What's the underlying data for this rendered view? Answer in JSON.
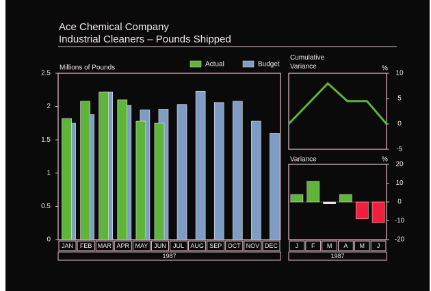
{
  "chart_data": [
    {
      "type": "bar",
      "title": "Ace Chemical Company",
      "subtitle": "Industrial Cleaners – Pounds Shipped",
      "y_label": "Millions of Pounds",
      "x_label": "1987",
      "categories": [
        "JAN",
        "FEB",
        "MAR",
        "APR",
        "MAY",
        "JUN",
        "JUL",
        "AUG",
        "SEP",
        "OCT",
        "NOV",
        "DEC"
      ],
      "series": [
        {
          "name": "Actual",
          "color": "#5fb53a",
          "values": [
            1.82,
            2.08,
            2.22,
            2.1,
            1.78,
            1.75,
            null,
            null,
            null,
            null,
            null,
            null
          ]
        },
        {
          "name": "Budget",
          "color": "#7f9cc4",
          "values": [
            1.75,
            1.88,
            2.22,
            2.02,
            1.95,
            1.96,
            2.03,
            2.23,
            2.06,
            2.08,
            1.78,
            1.6
          ]
        }
      ],
      "ylim": [
        0,
        2.5
      ],
      "yticks": [
        0,
        0.5,
        1,
        1.5,
        2,
        2.5
      ]
    },
    {
      "type": "line",
      "title": "Cumulative Variance",
      "unit": "%",
      "values": [
        0,
        4,
        8,
        4.5,
        4.5,
        0
      ],
      "color": "#5fb53a",
      "ylim": [
        -5,
        10
      ],
      "yticks": [
        -5,
        0,
        5,
        10
      ]
    },
    {
      "type": "bar",
      "title": "Variance",
      "unit": "%",
      "x_label": "1987",
      "categories": [
        "J",
        "F",
        "M",
        "A",
        "M",
        "J"
      ],
      "values": [
        4,
        11,
        -1,
        4,
        -9,
        -11
      ],
      "colors": [
        "#5fb53a",
        "#5fb53a",
        "#e8e0e0",
        "#5fb53a",
        "#f0203c",
        "#f0203c"
      ],
      "ylim": [
        -20,
        20
      ],
      "yticks": [
        -20,
        -10,
        0,
        10,
        20
      ]
    }
  ]
}
